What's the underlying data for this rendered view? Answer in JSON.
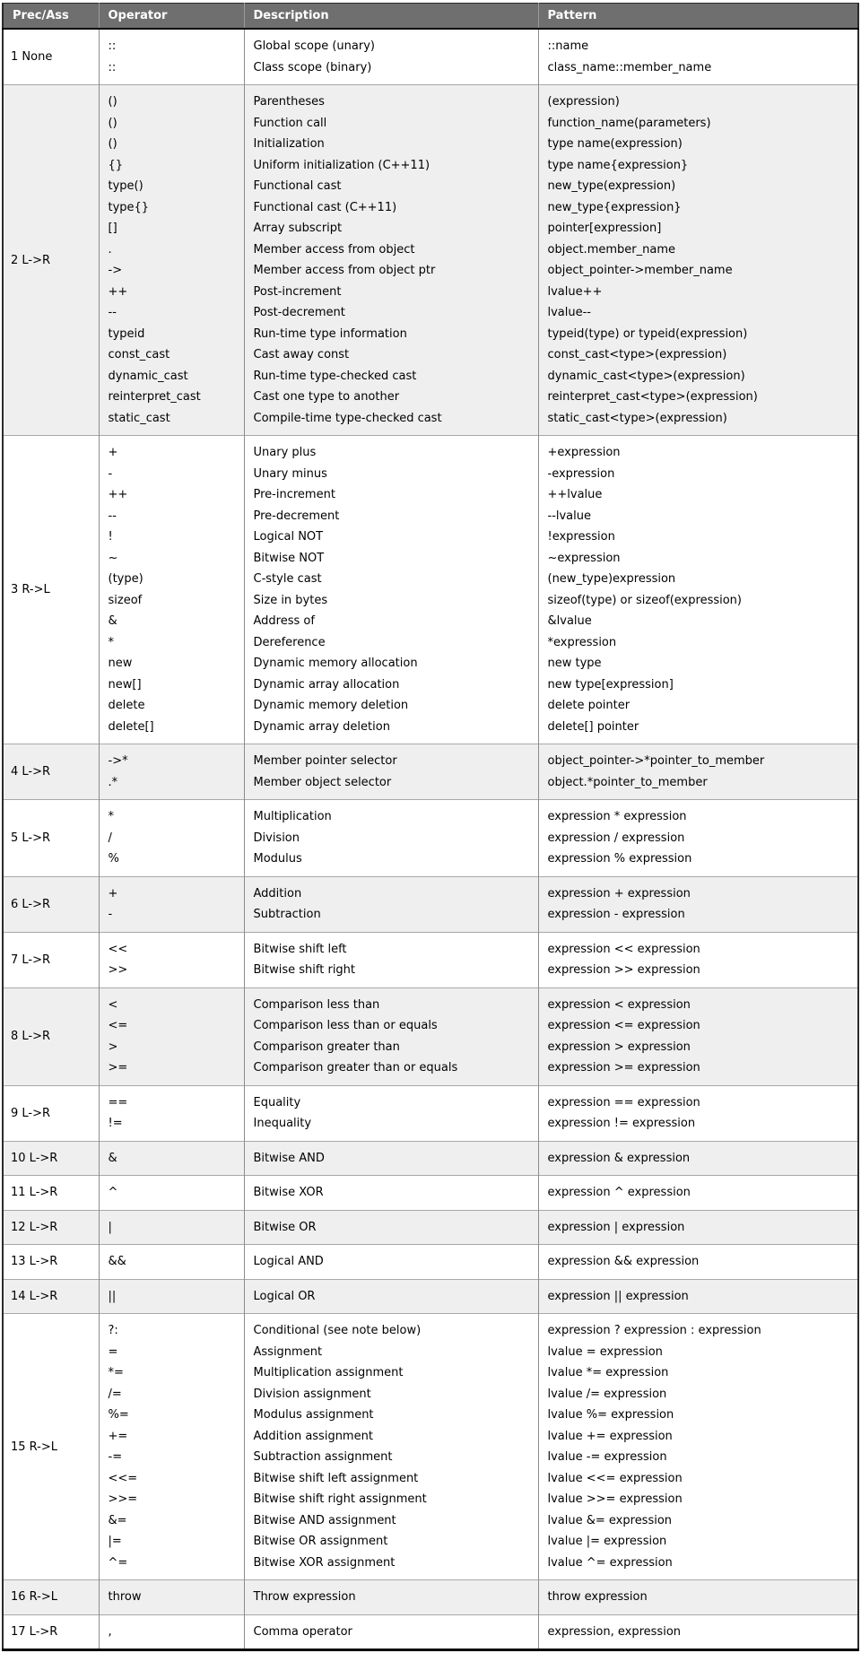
{
  "colors": {
    "header_bg": "#6f6f6f",
    "header_text": "#ffffff",
    "row_bg": "#ffffff",
    "row_alt_bg": "#efefef",
    "border_outer": "#2b2b2b",
    "border_col": "#8c8c8c",
    "border_row": "#a8a8a8",
    "text": "#000000"
  },
  "table": {
    "columns": [
      "Prec/Ass",
      "Operator",
      "Description",
      "Pattern"
    ],
    "rows": [
      {
        "prec": "1 None",
        "operators": [
          "::",
          "::"
        ],
        "descriptions": [
          "Global scope (unary)",
          "Class scope (binary)"
        ],
        "patterns": [
          "::name",
          "class_name::member_name"
        ]
      },
      {
        "prec": "2 L->R",
        "operators": [
          "()",
          "()",
          "()",
          "{}",
          "type()",
          "type{}",
          "[]",
          ".",
          "->",
          "++",
          "--",
          "typeid",
          "const_cast",
          "dynamic_cast",
          "reinterpret_cast",
          "static_cast"
        ],
        "descriptions": [
          "Parentheses",
          "Function call",
          "Initialization",
          "Uniform initialization (C++11)",
          "Functional cast",
          "Functional cast (C++11)",
          "Array subscript",
          "Member access from object",
          "Member access from object ptr",
          "Post-increment",
          "Post-decrement",
          "Run-time type information",
          "Cast away const",
          "Run-time type-checked cast",
          "Cast one type to another",
          "Compile-time type-checked cast"
        ],
        "patterns": [
          "(expression)",
          "function_name(parameters)",
          "type name(expression)",
          "type name{expression}",
          "new_type(expression)",
          "new_type{expression}",
          "pointer[expression]",
          "object.member_name",
          "object_pointer->member_name",
          "lvalue++",
          "lvalue--",
          "typeid(type) or typeid(expression)",
          "const_cast<type>(expression)",
          "dynamic_cast<type>(expression)",
          "reinterpret_cast<type>(expression)",
          "static_cast<type>(expression)"
        ]
      },
      {
        "prec": "3 R->L",
        "operators": [
          "+",
          "-",
          "++",
          "--",
          "!",
          "~",
          "(type)",
          "sizeof",
          "&",
          "*",
          "new",
          "new[]",
          "delete",
          "delete[]"
        ],
        "descriptions": [
          "Unary plus",
          "Unary minus",
          "Pre-increment",
          "Pre-decrement",
          "Logical NOT",
          "Bitwise NOT",
          "C-style cast",
          "Size in bytes",
          "Address of",
          "Dereference",
          "Dynamic memory allocation",
          "Dynamic array allocation",
          "Dynamic memory deletion",
          "Dynamic array deletion"
        ],
        "patterns": [
          "+expression",
          "-expression",
          "++lvalue",
          "--lvalue",
          "!expression",
          "~expression",
          "(new_type)expression",
          "sizeof(type) or sizeof(expression)",
          "&lvalue",
          "*expression",
          "new type",
          "new type[expression]",
          "delete pointer",
          "delete[] pointer"
        ]
      },
      {
        "prec": "4 L->R",
        "operators": [
          "->*",
          ".*"
        ],
        "descriptions": [
          "Member pointer selector",
          "Member object selector"
        ],
        "patterns": [
          "object_pointer->*pointer_to_member",
          "object.*pointer_to_member"
        ]
      },
      {
        "prec": "5 L->R",
        "operators": [
          "*",
          "/",
          "%"
        ],
        "descriptions": [
          "Multiplication",
          "Division",
          "Modulus"
        ],
        "patterns": [
          "expression * expression",
          "expression / expression",
          "expression % expression"
        ]
      },
      {
        "prec": "6 L->R",
        "operators": [
          "+",
          "-"
        ],
        "descriptions": [
          "Addition",
          "Subtraction"
        ],
        "patterns": [
          "expression + expression",
          "expression - expression"
        ]
      },
      {
        "prec": "7 L->R",
        "operators": [
          "<<",
          ">>"
        ],
        "descriptions": [
          "Bitwise shift left",
          "Bitwise shift right"
        ],
        "patterns": [
          "expression << expression",
          "expression >> expression"
        ]
      },
      {
        "prec": "8 L->R",
        "operators": [
          "<",
          "<=",
          ">",
          ">="
        ],
        "descriptions": [
          "Comparison less than",
          "Comparison less than or equals",
          "Comparison greater than",
          "Comparison greater than or equals"
        ],
        "patterns": [
          "expression < expression",
          "expression <= expression",
          "expression > expression",
          "expression >= expression"
        ]
      },
      {
        "prec": "9 L->R",
        "operators": [
          "==",
          "!="
        ],
        "descriptions": [
          "Equality",
          "Inequality"
        ],
        "patterns": [
          "expression == expression",
          "expression != expression"
        ]
      },
      {
        "prec": "10 L->R",
        "operators": [
          "&"
        ],
        "descriptions": [
          "Bitwise AND"
        ],
        "patterns": [
          "expression & expression"
        ]
      },
      {
        "prec": "11 L->R",
        "operators": [
          "^"
        ],
        "descriptions": [
          "Bitwise XOR"
        ],
        "patterns": [
          "expression ^ expression"
        ]
      },
      {
        "prec": "12 L->R",
        "operators": [
          "|"
        ],
        "descriptions": [
          "Bitwise OR"
        ],
        "patterns": [
          "expression | expression"
        ]
      },
      {
        "prec": "13 L->R",
        "operators": [
          "&&"
        ],
        "descriptions": [
          "Logical AND"
        ],
        "patterns": [
          "expression && expression"
        ]
      },
      {
        "prec": "14 L->R",
        "operators": [
          "||"
        ],
        "descriptions": [
          "Logical OR"
        ],
        "patterns": [
          "expression || expression"
        ]
      },
      {
        "prec": "15 R->L",
        "operators": [
          "?:",
          "=",
          "*=",
          "/=",
          "%=",
          "+=",
          "-=",
          "<<=",
          ">>=",
          "&=",
          "|=",
          "^="
        ],
        "descriptions": [
          "Conditional (see note below)",
          "Assignment",
          "Multiplication assignment",
          "Division assignment",
          "Modulus assignment",
          "Addition assignment",
          "Subtraction assignment",
          "Bitwise shift left assignment",
          "Bitwise shift right assignment",
          "Bitwise AND assignment",
          "Bitwise OR assignment",
          "Bitwise XOR assignment"
        ],
        "patterns": [
          "expression ? expression : expression",
          "lvalue = expression",
          "lvalue *= expression",
          "lvalue /= expression",
          "lvalue %= expression",
          "lvalue += expression",
          "lvalue -= expression",
          "lvalue <<= expression",
          "lvalue >>= expression",
          "lvalue &= expression",
          "lvalue |= expression",
          "lvalue ^= expression"
        ]
      },
      {
        "prec": "16 R->L",
        "operators": [
          "throw"
        ],
        "descriptions": [
          "Throw expression"
        ],
        "patterns": [
          "throw expression"
        ]
      },
      {
        "prec": "17 L->R",
        "operators": [
          ","
        ],
        "descriptions": [
          "Comma operator"
        ],
        "patterns": [
          "expression, expression"
        ]
      }
    ]
  }
}
